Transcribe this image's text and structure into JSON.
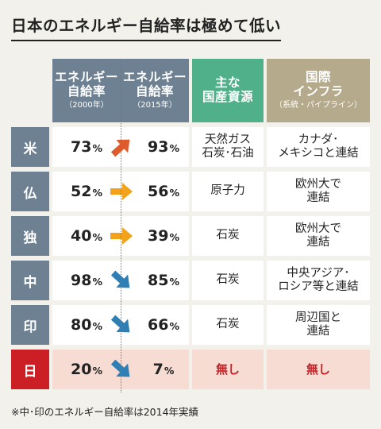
{
  "title": "日本のエネルギー自給率は極めて低い",
  "headers": {
    "rate2000": {
      "l1": "エネルギー",
      "l2": "自給率",
      "l3": "（2000年）"
    },
    "rate2015": {
      "l1": "エネルギー",
      "l2": "自給率",
      "l3": "（2015年）"
    },
    "resources": {
      "l1": "主な",
      "l2": "国産資源"
    },
    "infra": {
      "l1": "国際",
      "l2": "インフラ",
      "l3": "（系統・パイプライン）"
    }
  },
  "pct_unit": "%",
  "rows": [
    {
      "country": "米",
      "rate2000": "73",
      "rate2015": "93",
      "trend": "up",
      "resource1": "天然ガス",
      "resource2": "石炭･石油",
      "infra1": "カナダ･",
      "infra2": "メキシコと連結"
    },
    {
      "country": "仏",
      "rate2000": "52",
      "rate2015": "56",
      "trend": "flat",
      "resource1": "原子力",
      "resource2": "",
      "infra1": "欧州大で",
      "infra2": "連結"
    },
    {
      "country": "独",
      "rate2000": "40",
      "rate2015": "39",
      "trend": "flat",
      "resource1": "石炭",
      "resource2": "",
      "infra1": "欧州大で",
      "infra2": "連結"
    },
    {
      "country": "中",
      "rate2000": "98",
      "rate2015": "85",
      "trend": "down",
      "resource1": "石炭",
      "resource2": "",
      "infra1": "中央アジア･",
      "infra2": "ロシア等と連結"
    },
    {
      "country": "印",
      "rate2000": "80",
      "rate2015": "66",
      "trend": "down",
      "resource1": "石炭",
      "resource2": "",
      "infra1": "周辺国と",
      "infra2": "連結"
    },
    {
      "country": "日",
      "rate2000": "20",
      "rate2015": "7",
      "trend": "down",
      "resource1": "無し",
      "resource2": "",
      "infra1": "無し",
      "infra2": "",
      "highlight": true
    }
  ],
  "note": "※中･印のエネルギー自給率は2014年実績",
  "colors": {
    "header_rate": "#6d8193",
    "header_resources": "#4fb08a",
    "header_infra": "#b5aa8c",
    "japan_label": "#cc1f25",
    "japan_row": "#f6dcd3",
    "arrow_up": "#e05b2b",
    "arrow_flat": "#f2a31b",
    "arrow_down": "#2f7fb5"
  },
  "chart_data": {
    "type": "table",
    "title": "日本のエネルギー自給率は極めて低い",
    "columns": [
      "エネルギー自給率（2000年）",
      "エネルギー自給率（2015年）",
      "主な国産資源",
      "国際インフラ（系統・パイプライン）"
    ],
    "categories": [
      "米",
      "仏",
      "独",
      "中",
      "印",
      "日"
    ],
    "series": [
      {
        "name": "エネルギー自給率（2000年）",
        "values": [
          73,
          52,
          40,
          98,
          80,
          20
        ]
      },
      {
        "name": "エネルギー自給率（2015年）",
        "values": [
          93,
          56,
          39,
          85,
          66,
          7
        ]
      }
    ],
    "unit": "%"
  }
}
